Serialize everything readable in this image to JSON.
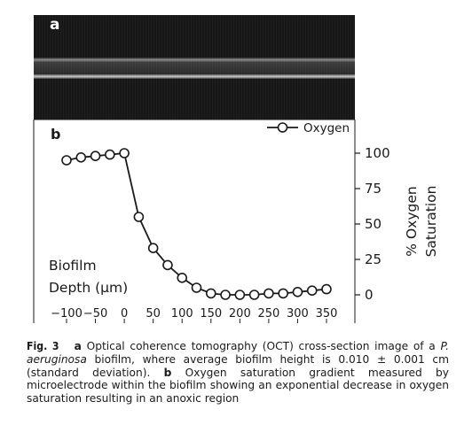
{
  "panel_a": {
    "label": "a"
  },
  "panel_b": {
    "label": "b"
  },
  "chart_data": {
    "type": "line",
    "xlabel": "Biofilm Depth (μm)",
    "ylabel": "% Oxygen Saturation",
    "xlim": [
      -120,
      365
    ],
    "ylim": [
      -10,
      115
    ],
    "xticks": [
      -100,
      -50,
      0,
      50,
      100,
      150,
      200,
      250,
      300,
      350
    ],
    "yticks": [
      0,
      25,
      50,
      75,
      100
    ],
    "legend": {
      "position": "top-right",
      "entries": [
        "Oxygen"
      ]
    },
    "grid": false,
    "series": [
      {
        "name": "Oxygen",
        "marker": "open-circle",
        "x": [
          -100,
          -75,
          -50,
          -25,
          0,
          25,
          50,
          75,
          100,
          125,
          150,
          175,
          200,
          225,
          250,
          275,
          300,
          325,
          350
        ],
        "y": [
          95,
          97,
          98,
          99,
          100,
          55,
          33,
          21,
          12,
          5,
          1,
          0,
          0,
          0,
          1,
          1,
          2,
          3,
          4
        ]
      }
    ]
  },
  "caption": {
    "fig_label": "Fig. 3",
    "part_a_label": "a",
    "part_a_text_1": "Optical coherence tomography (OCT) cross-section image of a ",
    "organism": "P. aeruginosa",
    "part_a_text_2": " biofilm, where average biofilm height is 0.010 ± 0.001 cm (standard deviation). ",
    "part_b_label": "b",
    "part_b_text": "Oxygen saturation gradient measured by microelectrode within the biofilm showing an exponential decrease in oxygen saturation resulting in an anoxic region"
  }
}
